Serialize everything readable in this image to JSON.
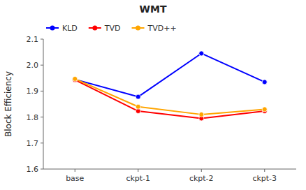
{
  "chart_data": {
    "type": "line",
    "title": "WMT",
    "ylabel": "Block Efficiency",
    "categories": [
      "base",
      "ckpt-1",
      "ckpt-2",
      "ckpt-3"
    ],
    "series": [
      {
        "name": "KLD",
        "color": "blue",
        "marker": "circle",
        "values": [
          1.945,
          1.878,
          2.045,
          1.935
        ]
      },
      {
        "name": "TVD",
        "color": "red",
        "marker": "circle",
        "values": [
          1.943,
          1.823,
          1.795,
          1.823
        ]
      },
      {
        "name": "TVD++",
        "color": "orange",
        "marker": "circle",
        "values": [
          1.947,
          1.84,
          1.81,
          1.83
        ]
      }
    ],
    "ylim": [
      1.6,
      2.1
    ],
    "yticks": [
      1.6,
      1.7,
      1.8,
      1.9,
      {
        "value": 2.0,
        "label": "2.0"
      },
      2.1
    ],
    "grid": false,
    "legend": "upper left"
  }
}
